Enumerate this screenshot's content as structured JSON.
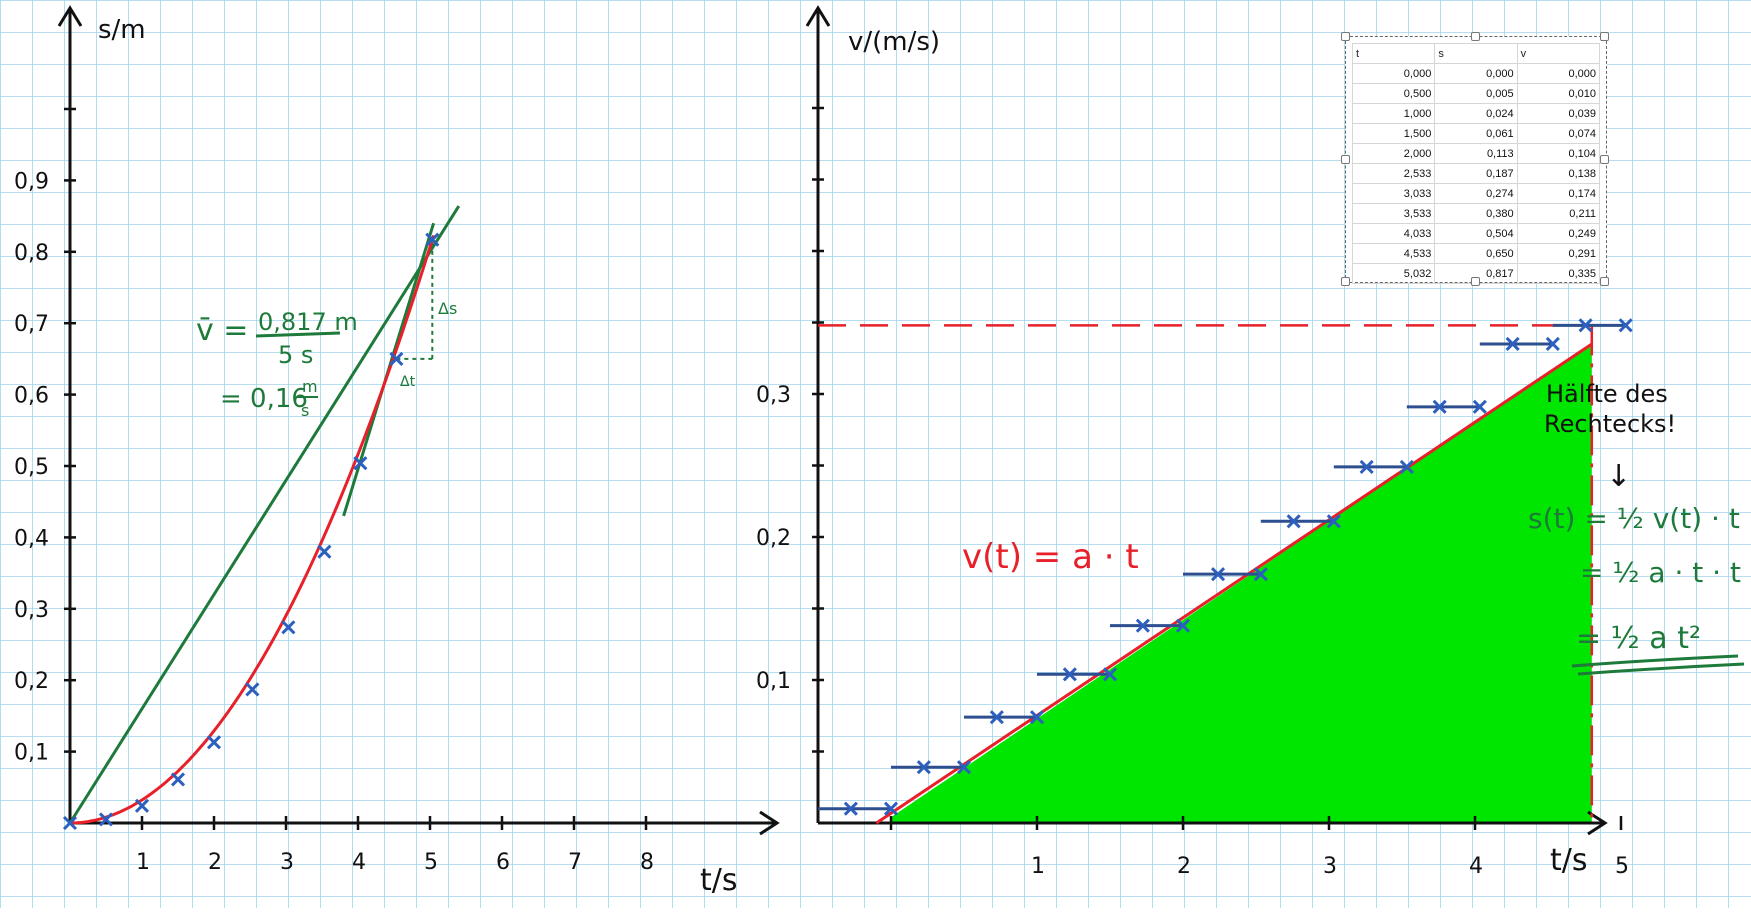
{
  "chart_data": [
    {
      "type": "scatter",
      "ylabel": "s/m",
      "xlabel": "t/s",
      "x_ticks": [
        "1",
        "2",
        "3",
        "4",
        "5",
        "6",
        "7",
        "8"
      ],
      "y_ticks": [
        "0,1",
        "0,2",
        "0,3",
        "0,4",
        "0,5",
        "0,6",
        "0,7",
        "0,8",
        "0,9"
      ],
      "xlim": [
        0,
        9.5
      ],
      "ylim": [
        0,
        1.1
      ],
      "measured_points": {
        "x": [
          0,
          0.5,
          1.0,
          1.5,
          2.0,
          2.533,
          3.033,
          3.533,
          4.033,
          4.533,
          5.032
        ],
        "y": [
          0,
          0.005,
          0.024,
          0.061,
          0.113,
          0.187,
          0.274,
          0.38,
          0.504,
          0.65,
          0.817
        ]
      },
      "secant_slope": 0.16,
      "annotations": {
        "avg_v_lhs": "v̄ =",
        "avg_v_num": "0,817 m",
        "avg_v_den": "5   s",
        "avg_v_result": "= 0,16",
        "avg_v_unit_num": "m",
        "avg_v_unit_den": "s",
        "delta_s": "Δs",
        "delta_t": "Δt"
      },
      "colors": {
        "axes": "#111111",
        "curve": "#e8202a",
        "points": "#2d5fbf",
        "secant": "#1e7a3a"
      }
    },
    {
      "type": "line",
      "ylabel": "v/(m/s)",
      "xlabel": "t/s",
      "x_ticks": [
        "1",
        "2",
        "3",
        "4",
        "5"
      ],
      "y_ticks": [
        "0,1",
        "0,2",
        "0,3"
      ],
      "xlim": [
        -0.5,
        5.3
      ],
      "ylim": [
        0,
        0.35
      ],
      "steps": {
        "x_start": [
          -0.5,
          0.0,
          0.5,
          1.0,
          1.5,
          2.0,
          2.533,
          3.033,
          3.533,
          4.033,
          4.533
        ],
        "x_end": [
          0.0,
          0.5,
          1.0,
          1.5,
          2.0,
          2.533,
          3.033,
          3.533,
          4.033,
          4.533,
          5.032
        ],
        "v": [
          0.01,
          0.039,
          0.074,
          0.104,
          0.138,
          0.174,
          0.211,
          0.249,
          0.291,
          0.335,
          0.348
        ]
      },
      "fit_line": {
        "x": [
          -0.1,
          4.8
        ],
        "y": [
          0.0,
          0.335
        ]
      },
      "rectangle_height": 0.348,
      "annotations": {
        "formula_v": "v(t) = a · t",
        "note_line1": "Hälfte des",
        "note_line2": "Rechtecks!",
        "arrow": "↓",
        "s_eq1": "s(t) = ½ v(t) · t",
        "s_eq2": "= ½ a · t · t",
        "s_eq3": "= ½ a t²"
      },
      "colors": {
        "fill": "#00e600",
        "fit": "#e8202a",
        "steps": "#2d5fbf",
        "rect": "#e8202a",
        "notes": "#1e7a3a"
      }
    }
  ],
  "table": {
    "headers": [
      "t",
      "s",
      "v"
    ],
    "rows": [
      [
        "0,000",
        "0,000",
        "0,000"
      ],
      [
        "0,500",
        "0,005",
        "0,010"
      ],
      [
        "1,000",
        "0,024",
        "0,039"
      ],
      [
        "1,500",
        "0,061",
        "0,074"
      ],
      [
        "2,000",
        "0,113",
        "0,104"
      ],
      [
        "2,533",
        "0,187",
        "0,138"
      ],
      [
        "3,033",
        "0,274",
        "0,174"
      ],
      [
        "3,533",
        "0,380",
        "0,211"
      ],
      [
        "4,033",
        "0,504",
        "0,249"
      ],
      [
        "4,533",
        "0,650",
        "0,291"
      ],
      [
        "5,032",
        "0,817",
        "0,335"
      ]
    ]
  }
}
